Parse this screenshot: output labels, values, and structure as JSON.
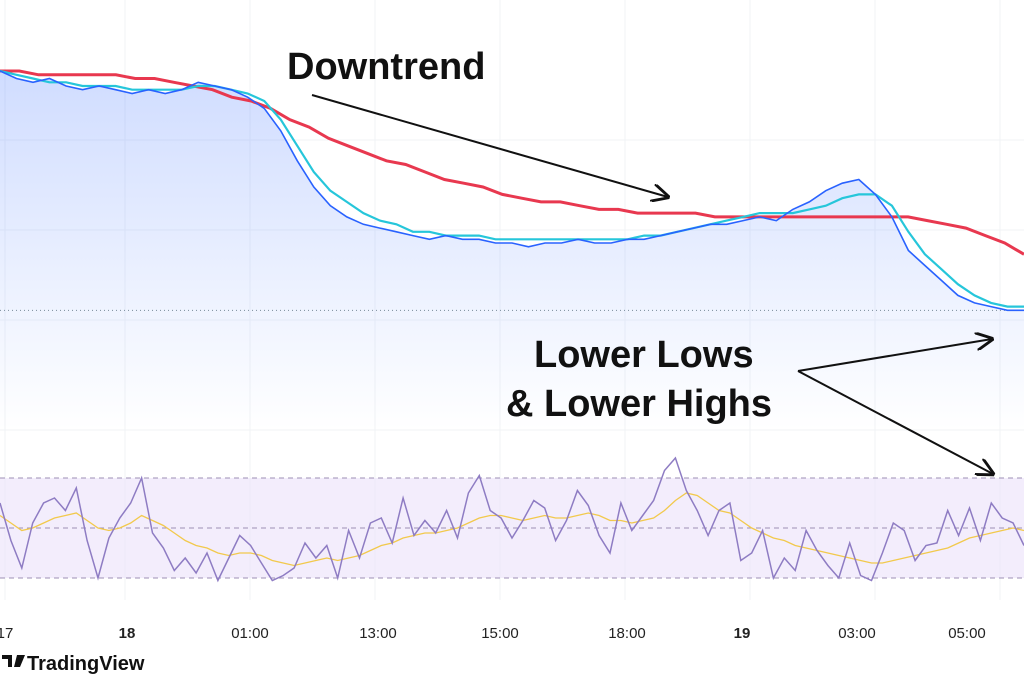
{
  "chart_data": [
    {
      "type": "line",
      "title": "",
      "xlabel": "",
      "ylabel": "",
      "x_ticks": [
        "17",
        "18",
        "01:00",
        "13:00",
        "15:00",
        "18:00",
        "19",
        "03:00",
        "05:00"
      ],
      "x_ticks_bold": [
        "18",
        "19"
      ],
      "annotations": [
        "Downtrend",
        "Lower Lows",
        "& Lower Highs"
      ],
      "grid": true,
      "series": [
        {
          "role": "price",
          "color": "#2962ff",
          "values": [
            96,
            94,
            93,
            94,
            92,
            91,
            92,
            91,
            90,
            91,
            90,
            91,
            93,
            92,
            91,
            89,
            86,
            80,
            72,
            65,
            60,
            57,
            55,
            54,
            53,
            52,
            51,
            52,
            51,
            51,
            50,
            50,
            49,
            50,
            50,
            51,
            50,
            50,
            51,
            51,
            52,
            53,
            54,
            55,
            55,
            56,
            57,
            56,
            59,
            61,
            64,
            66,
            67,
            63,
            57,
            48,
            44,
            40,
            36,
            34,
            33,
            32,
            32
          ]
        },
        {
          "role": "fast-ma",
          "color": "#26c6da",
          "values": [
            96,
            95,
            94,
            93,
            93,
            92,
            92,
            92,
            91,
            91,
            91,
            91,
            92,
            92,
            91,
            90,
            88,
            83,
            76,
            69,
            64,
            61,
            58,
            56,
            55,
            53,
            53,
            52,
            52,
            52,
            51,
            51,
            51,
            51,
            51,
            51,
            51,
            51,
            51,
            52,
            52,
            53,
            54,
            55,
            56,
            57,
            58,
            58,
            58,
            59,
            60,
            62,
            63,
            63,
            60,
            53,
            47,
            43,
            39,
            36,
            34,
            33,
            33
          ]
        },
        {
          "role": "slow-ma",
          "color": "#e8384f",
          "values": [
            96,
            96,
            95,
            95,
            95,
            95,
            95,
            94,
            94,
            93,
            92,
            91,
            89,
            88,
            86,
            83,
            81,
            78,
            76,
            74,
            72,
            71,
            69,
            67,
            66,
            65,
            63,
            62,
            61,
            61,
            60,
            59,
            59,
            58,
            58,
            58,
            58,
            57,
            57,
            57,
            57,
            57,
            57,
            57,
            57,
            57,
            57,
            57,
            56,
            55,
            54,
            52,
            50,
            47
          ]
        }
      ],
      "ref_line_value": 32
    },
    {
      "type": "line",
      "role": "oscillator",
      "bands": [
        70,
        50,
        30
      ],
      "series": [
        {
          "name": "",
          "color": "#8e7cc3",
          "values": [
            60,
            45,
            34,
            52,
            60,
            62,
            57,
            66,
            45,
            30,
            46,
            54,
            60,
            70,
            48,
            42,
            33,
            38,
            32,
            40,
            29,
            38,
            47,
            43,
            36,
            29,
            31,
            34,
            44,
            38,
            43,
            30,
            49,
            38,
            52,
            54,
            44,
            62,
            47,
            53,
            48,
            57,
            46,
            64,
            71,
            57,
            54,
            46,
            53,
            61,
            58,
            45,
            53,
            65,
            59,
            47,
            40,
            60,
            49,
            55,
            61,
            73,
            78,
            65,
            57,
            47,
            57,
            60,
            37,
            40,
            49,
            30,
            38,
            33,
            49,
            41,
            35,
            30,
            44,
            31,
            29,
            40,
            52,
            49,
            37,
            43,
            44,
            57,
            47,
            58,
            45,
            60,
            54,
            52,
            43
          ]
        },
        {
          "name": "",
          "color": "#f2c94c",
          "values": [
            55,
            52,
            49,
            50,
            52,
            54,
            55,
            56,
            53,
            50,
            49,
            50,
            52,
            55,
            53,
            51,
            48,
            45,
            43,
            42,
            40,
            39,
            40,
            40,
            39,
            37,
            36,
            35,
            36,
            37,
            38,
            37,
            38,
            39,
            41,
            43,
            44,
            46,
            47,
            48,
            48,
            49,
            50,
            52,
            54,
            55,
            55,
            54,
            53,
            54,
            55,
            54,
            54,
            55,
            56,
            55,
            53,
            53,
            52,
            53,
            54,
            57,
            61,
            64,
            63,
            60,
            57,
            56,
            53,
            50,
            48,
            46,
            45,
            43,
            42,
            41,
            40,
            39,
            38,
            37,
            36,
            36,
            37,
            38,
            39,
            40,
            41,
            42,
            44,
            46,
            47,
            48,
            49,
            50,
            49
          ]
        }
      ]
    }
  ]
}
